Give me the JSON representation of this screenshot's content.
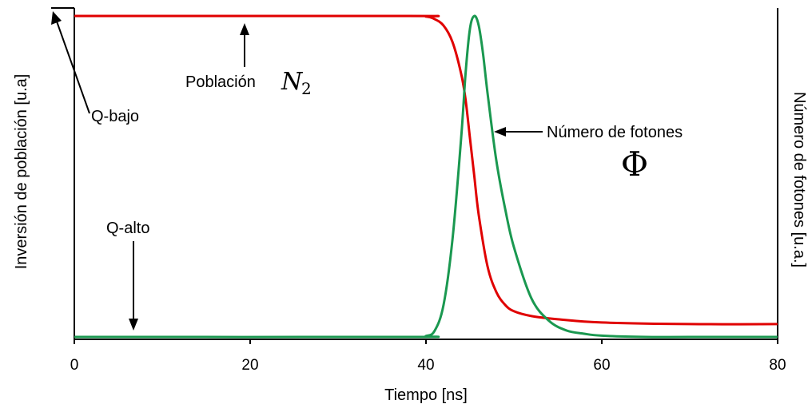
{
  "chart_data": {
    "type": "line",
    "xlabel": "Tiempo [ns]",
    "ylabel_left": "Inversión de población [u.a]",
    "ylabel_right": "Número de fotones [u.a.]",
    "xlim": [
      0,
      80
    ],
    "ylim": [
      0,
      1
    ],
    "x_ticks": [
      0,
      20,
      40,
      60,
      80
    ],
    "grid": false,
    "series": [
      {
        "name": "Población N2",
        "color": "#e00000",
        "x": [
          0,
          38,
          40,
          41,
          42,
          43,
          44,
          44.5,
          45,
          45.5,
          46,
          47,
          48,
          49,
          50,
          52,
          55,
          60,
          70,
          80
        ],
        "y": [
          1.0,
          1.0,
          0.998,
          0.99,
          0.97,
          0.92,
          0.82,
          0.74,
          0.62,
          0.5,
          0.38,
          0.22,
          0.14,
          0.1,
          0.08,
          0.065,
          0.055,
          0.045,
          0.04,
          0.04
        ]
      },
      {
        "name": "Número de fotones Φ",
        "color": "#1a9850",
        "x": [
          0,
          38,
          40,
          41,
          42,
          43,
          44,
          44.5,
          45,
          45.5,
          46,
          46.5,
          47,
          48,
          49,
          50,
          52,
          54,
          56,
          58,
          60,
          65,
          70,
          80
        ],
        "y": [
          0.0,
          0.0,
          0.003,
          0.02,
          0.1,
          0.3,
          0.62,
          0.82,
          0.96,
          1.0,
          0.97,
          0.88,
          0.76,
          0.55,
          0.4,
          0.28,
          0.12,
          0.05,
          0.02,
          0.01,
          0.004,
          0.0,
          0.0,
          0.0
        ]
      }
    ],
    "annotations": {
      "q_bajo": "Q-bajo",
      "q_alto": "Q-alto",
      "poblacion": "Población",
      "n_symbol": "N",
      "n_subscript": "2",
      "fotones": "Número de fotones",
      "phi_symbol": "Φ"
    }
  }
}
